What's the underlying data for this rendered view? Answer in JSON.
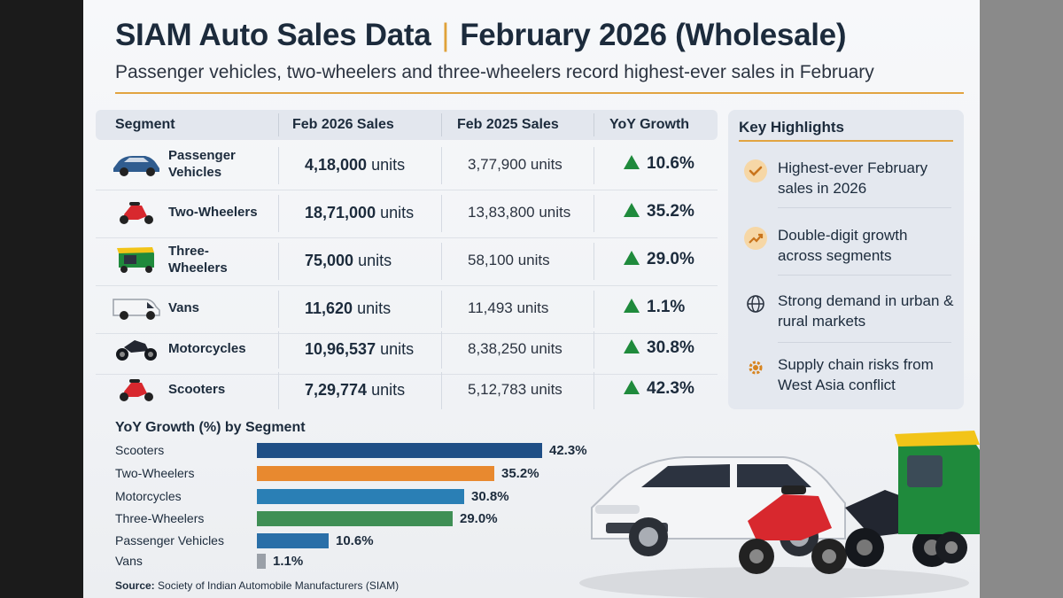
{
  "header": {
    "title": "SIAM Auto Sales Data",
    "title_right": "February 2026 (Wholesale)",
    "subtitle": "Passenger vehicles, two-wheelers and three-wheelers record highest-ever sales in February"
  },
  "table": {
    "columns": [
      "Segment",
      "Feb 2026 Sales",
      "Feb 2025 Sales",
      "YoY Growth"
    ],
    "rows": [
      {
        "segment": "Passenger Vehicles",
        "icon": "car-icon",
        "feb2026": "4,18,000",
        "feb2025": "3,77,900 units",
        "growth": "10.6%"
      },
      {
        "segment": "Two-Wheelers",
        "icon": "scooter-icon",
        "feb2026": "18,71,000",
        "feb2025": "13,83,800 units",
        "growth": "35.2%"
      },
      {
        "segment": "Three-Wheelers",
        "icon": "auto-rickshaw-icon",
        "feb2026": "75,000",
        "feb2025": "58,100 units",
        "growth": "29.0%"
      },
      {
        "segment": "Vans",
        "icon": "van-icon",
        "feb2026": "11,620",
        "feb2025": "11,493 units",
        "growth": "1.1%"
      },
      {
        "segment": "Motorcycles",
        "icon": "motorcycle-icon",
        "feb2026": "10,96,537",
        "feb2025": "8,38,250 units",
        "growth": "30.8%"
      },
      {
        "segment": "Scooters",
        "icon": "scooter-icon",
        "feb2026": "7,29,774",
        "feb2025": "5,12,783 units",
        "growth": "42.3%"
      }
    ],
    "unit_word": "units"
  },
  "highlights": {
    "title": "Key Highlights",
    "items": [
      {
        "icon": "checkmark-icon",
        "text": "Highest-ever February sales in 2026"
      },
      {
        "icon": "trend-up-icon",
        "text": "Double-digit growth across segments"
      },
      {
        "icon": "globe-icon",
        "text": "Strong demand in urban & rural markets"
      },
      {
        "icon": "gear-icon",
        "text": "Supply chain risks from West Asia conflict"
      }
    ]
  },
  "chart_data": {
    "type": "bar",
    "title": "YoY Growth (%) by Segment",
    "categories": [
      "Scooters",
      "Two-Wheelers",
      "Motorcycles",
      "Three-Wheelers",
      "Passenger Vehicles",
      "Vans"
    ],
    "values": [
      42.3,
      35.2,
      30.8,
      29.0,
      10.6,
      1.1
    ],
    "value_labels": [
      "42.3%",
      "35.2%",
      "30.8%",
      "29.0%",
      "10.6%",
      "1.1%"
    ],
    "colors": [
      "#1f4f86",
      "#e8892f",
      "#2a7fb5",
      "#3f8f55",
      "#2a6fa8",
      "#9aa0a8"
    ],
    "orientation": "horizontal",
    "xlim": [
      0,
      42.3
    ]
  },
  "source": {
    "label": "Source:",
    "text": "Society of Indian Automobile Manufacturers (SIAM)"
  },
  "colors": {
    "accent": "#e2a441",
    "growth_green": "#1f8a3c",
    "text_dark": "#1c2b3c"
  }
}
